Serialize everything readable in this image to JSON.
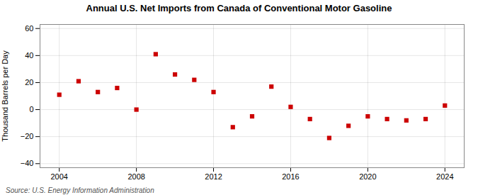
{
  "chart_data": {
    "type": "scatter",
    "title": "Annual U.S. Net Imports from Canada of Conventional Motor Gasoline",
    "ylabel": "Thousand Barrels per Day",
    "source": "Source: U.S. Energy Information Administration",
    "x": [
      2004,
      2005,
      2006,
      2007,
      2008,
      2009,
      2010,
      2011,
      2012,
      2013,
      2014,
      2015,
      2016,
      2017,
      2018,
      2019,
      2020,
      2021,
      2022,
      2023,
      2024
    ],
    "values": [
      11,
      21,
      13,
      16,
      0,
      41,
      26,
      22,
      13,
      -13,
      -5,
      17,
      2,
      -7,
      -21,
      -12,
      -5,
      -7,
      -8,
      -7,
      3
    ],
    "color": "#cc0000",
    "marker": "square",
    "xlim": [
      2003.0,
      2025.0
    ],
    "xticks": [
      2004,
      2008,
      2012,
      2016,
      2020,
      2024
    ],
    "ylim": [
      -43,
      63
    ],
    "yticks": [
      -40,
      -20,
      0,
      20,
      40,
      60
    ],
    "grid": true
  }
}
